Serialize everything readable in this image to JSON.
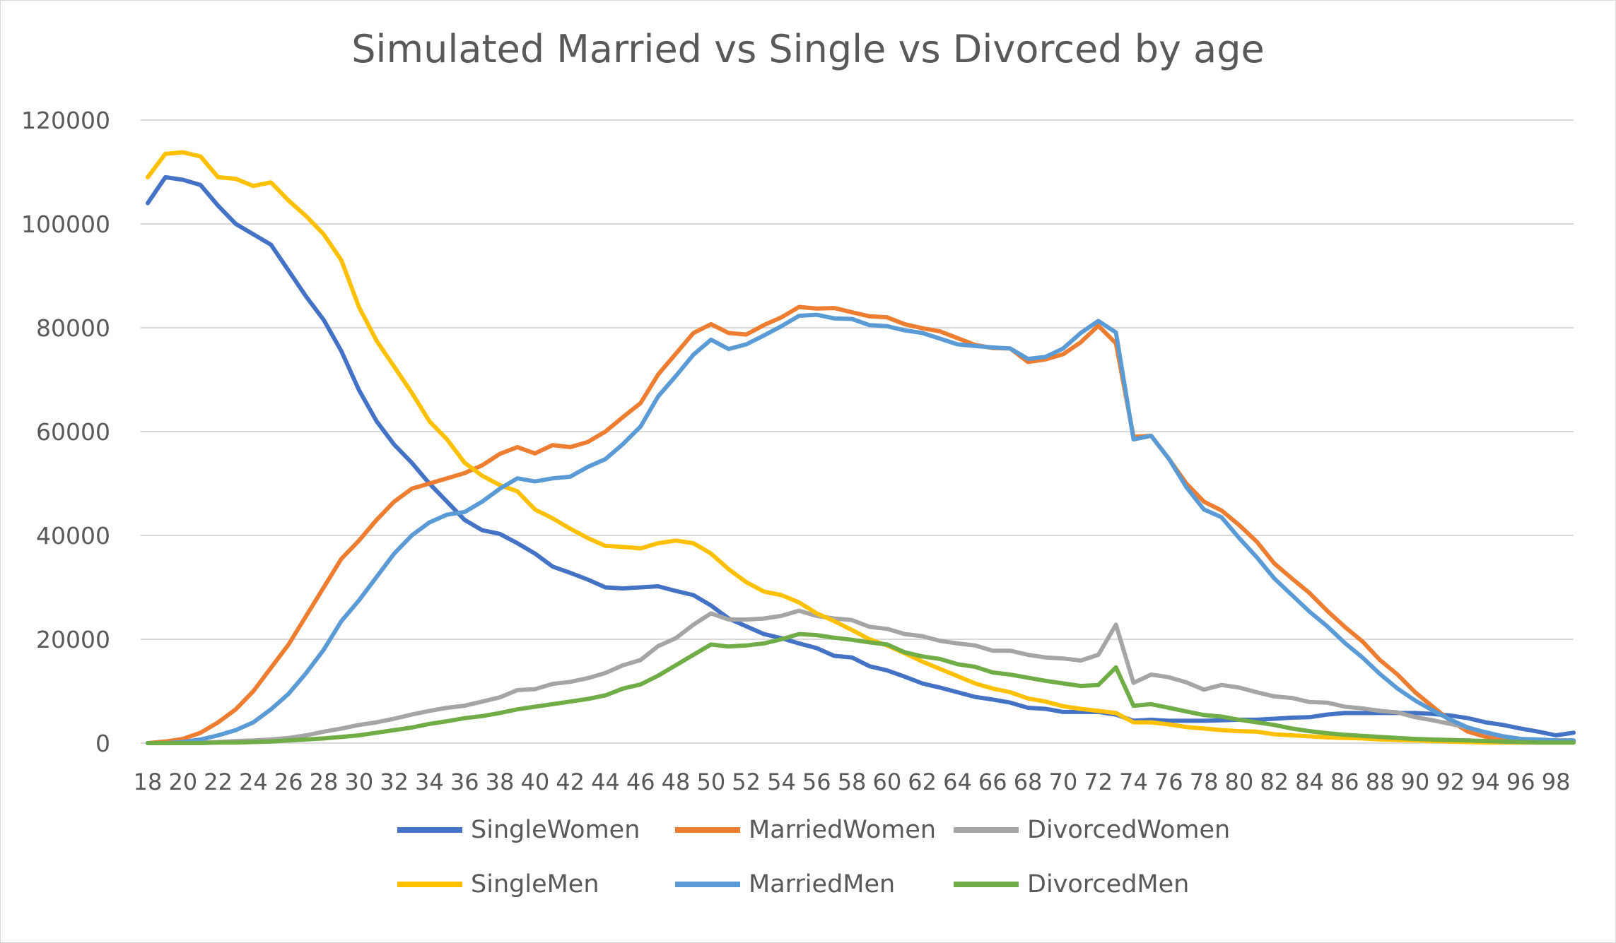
{
  "chart_data": {
    "type": "line",
    "title": "Simulated Married vs Single vs Divorced by age",
    "xlabel": "",
    "ylabel": "",
    "x_tick_labels": [
      "18",
      "20",
      "22",
      "24",
      "26",
      "28",
      "30",
      "32",
      "34",
      "36",
      "38",
      "40",
      "42",
      "44",
      "46",
      "48",
      "50",
      "52",
      "54",
      "56",
      "58",
      "60",
      "62",
      "64",
      "66",
      "68",
      "70",
      "72",
      "74",
      "76",
      "78",
      "80",
      "82",
      "84",
      "86",
      "88",
      "90",
      "92",
      "94",
      "96",
      "98"
    ],
    "y_tick_labels": [
      "0",
      "20000",
      "40000",
      "60000",
      "80000",
      "100000",
      "120000"
    ],
    "ylim": [
      0,
      120000
    ],
    "x": [
      18,
      19,
      20,
      21,
      22,
      23,
      24,
      25,
      26,
      27,
      28,
      29,
      30,
      31,
      32,
      33,
      34,
      35,
      36,
      37,
      38,
      39,
      40,
      41,
      42,
      43,
      44,
      45,
      46,
      47,
      48,
      49,
      50,
      51,
      52,
      53,
      54,
      55,
      56,
      57,
      58,
      59,
      60,
      61,
      62,
      63,
      64,
      65,
      66,
      67,
      68,
      69,
      70,
      71,
      72,
      73,
      74,
      75,
      76,
      77,
      78,
      79,
      80,
      81,
      82,
      83,
      84,
      85,
      86,
      87,
      88,
      89,
      90,
      91,
      92,
      93,
      94,
      95,
      96,
      97,
      98,
      99
    ],
    "grid": "horizontal",
    "legend_position": "bottom",
    "series": [
      {
        "name": "SingleWomen",
        "color": "#4472c4",
        "values": [
          104000,
          109000,
          108500,
          107500,
          103500,
          100000,
          98000,
          96000,
          91000,
          86000,
          81500,
          75500,
          68000,
          62000,
          57500,
          54000,
          50000,
          46500,
          43000,
          41000,
          40300,
          38500,
          36500,
          34000,
          32800,
          31500,
          30000,
          29800,
          30000,
          30200,
          29300,
          28500,
          26500,
          24000,
          22500,
          21000,
          20200,
          19200,
          18300,
          16800,
          16500,
          14800,
          14000,
          12800,
          11500,
          10700,
          9800,
          8900,
          8400,
          7800,
          6800,
          6600,
          6000,
          6000,
          6000,
          5500,
          4300,
          4500,
          4300,
          4300,
          4300,
          4400,
          4500,
          4500,
          4700,
          4900,
          5000,
          5500,
          5800,
          5800,
          5800,
          5800,
          5800,
          5600,
          5300,
          4800,
          4000,
          3500,
          2800,
          2200,
          1500,
          2000
        ]
      },
      {
        "name": "MarriedWomen",
        "color": "#ed7d31",
        "values": [
          0,
          300,
          800,
          2000,
          4000,
          6500,
          10000,
          14500,
          19000,
          24500,
          30000,
          35500,
          39000,
          43000,
          46500,
          49000,
          50000,
          51000,
          52000,
          53500,
          55700,
          57000,
          55800,
          57400,
          57000,
          58000,
          60000,
          62800,
          65500,
          71000,
          75000,
          79000,
          80700,
          79000,
          78700,
          80500,
          82000,
          84000,
          83700,
          83800,
          83000,
          82200,
          82000,
          80700,
          79900,
          79300,
          78000,
          76700,
          76100,
          76000,
          73400,
          73900,
          74900,
          77200,
          80400,
          77000,
          59000,
          59200,
          54800,
          50000,
          46500,
          44800,
          42000,
          38800,
          34600,
          31700,
          28900,
          25500,
          22400,
          19600,
          16000,
          13200,
          9800,
          7000,
          4300,
          2200,
          1200,
          800,
          700,
          600,
          500,
          500
        ]
      },
      {
        "name": "DivorcedWomen",
        "color": "#a5a5a5",
        "values": [
          0,
          0,
          0,
          100,
          200,
          400,
          500,
          700,
          1000,
          1500,
          2200,
          2800,
          3500,
          4000,
          4700,
          5500,
          6200,
          6800,
          7200,
          8000,
          8800,
          10200,
          10400,
          11400,
          11800,
          12500,
          13500,
          15000,
          16000,
          18700,
          20200,
          22800,
          25000,
          23800,
          23800,
          24000,
          24500,
          25500,
          24500,
          24000,
          23700,
          22400,
          22000,
          21000,
          20600,
          19700,
          19200,
          18800,
          17800,
          17800,
          17000,
          16500,
          16300,
          15900,
          17000,
          22800,
          11600,
          13200,
          12700,
          11700,
          10300,
          11200,
          10700,
          9800,
          9000,
          8700,
          7900,
          7800,
          7000,
          6700,
          6200,
          5900,
          5000,
          4400,
          3700,
          3000,
          2000,
          1300,
          800,
          600,
          500,
          500
        ]
      },
      {
        "name": "SingleMen",
        "color": "#ffc000",
        "values": [
          109000,
          113500,
          113800,
          113000,
          109000,
          108700,
          107300,
          108000,
          104500,
          101500,
          98000,
          93000,
          84000,
          77500,
          72500,
          67500,
          62000,
          58500,
          54000,
          51500,
          49700,
          48500,
          45000,
          43300,
          41300,
          39500,
          38000,
          37800,
          37500,
          38500,
          39000,
          38500,
          36500,
          33500,
          31000,
          29200,
          28500,
          27100,
          25000,
          23500,
          21800,
          20000,
          18800,
          17300,
          15700,
          14300,
          12900,
          11500,
          10500,
          9800,
          8600,
          8000,
          7100,
          6600,
          6200,
          5800,
          4000,
          4000,
          3600,
          3100,
          2800,
          2500,
          2300,
          2200,
          1700,
          1500,
          1300,
          1100,
          1000,
          900,
          700,
          600,
          500,
          400,
          300,
          200,
          100,
          100,
          100,
          100,
          100,
          100
        ]
      },
      {
        "name": "MarriedMen",
        "color": "#5b9bd5",
        "values": [
          0,
          0,
          200,
          700,
          1500,
          2500,
          4000,
          6500,
          9500,
          13500,
          18000,
          23500,
          27500,
          32000,
          36500,
          40000,
          42500,
          44000,
          44500,
          46500,
          49000,
          51000,
          50400,
          51000,
          51300,
          53200,
          54700,
          57600,
          61000,
          66800,
          70700,
          74800,
          77700,
          75900,
          76800,
          78500,
          80300,
          82300,
          82500,
          81800,
          81700,
          80500,
          80300,
          79500,
          79000,
          77900,
          76800,
          76500,
          76200,
          76000,
          74000,
          74400,
          76000,
          79000,
          81300,
          79100,
          58500,
          59200,
          54800,
          49300,
          45000,
          43500,
          39500,
          35800,
          31700,
          28500,
          25300,
          22500,
          19300,
          16500,
          13300,
          10500,
          8200,
          6300,
          4500,
          3000,
          2100,
          1300,
          800,
          700,
          500,
          500
        ]
      },
      {
        "name": "DivorcedMen",
        "color": "#70ad47",
        "values": [
          0,
          0,
          0,
          0,
          100,
          100,
          200,
          300,
          500,
          700,
          900,
          1200,
          1500,
          2000,
          2500,
          3000,
          3700,
          4200,
          4800,
          5200,
          5800,
          6500,
          7000,
          7500,
          8000,
          8500,
          9200,
          10500,
          11300,
          13000,
          15000,
          17000,
          19000,
          18600,
          18800,
          19200,
          20000,
          21000,
          20800,
          20300,
          19900,
          19400,
          19000,
          17500,
          16700,
          16200,
          15200,
          14700,
          13600,
          13200,
          12600,
          12000,
          11500,
          11000,
          11200,
          14600,
          7200,
          7500,
          6800,
          6100,
          5400,
          5100,
          4500,
          4000,
          3500,
          2800,
          2300,
          1900,
          1600,
          1400,
          1200,
          1000,
          800,
          700,
          600,
          500,
          400,
          300,
          200,
          100,
          100,
          100
        ]
      }
    ]
  }
}
